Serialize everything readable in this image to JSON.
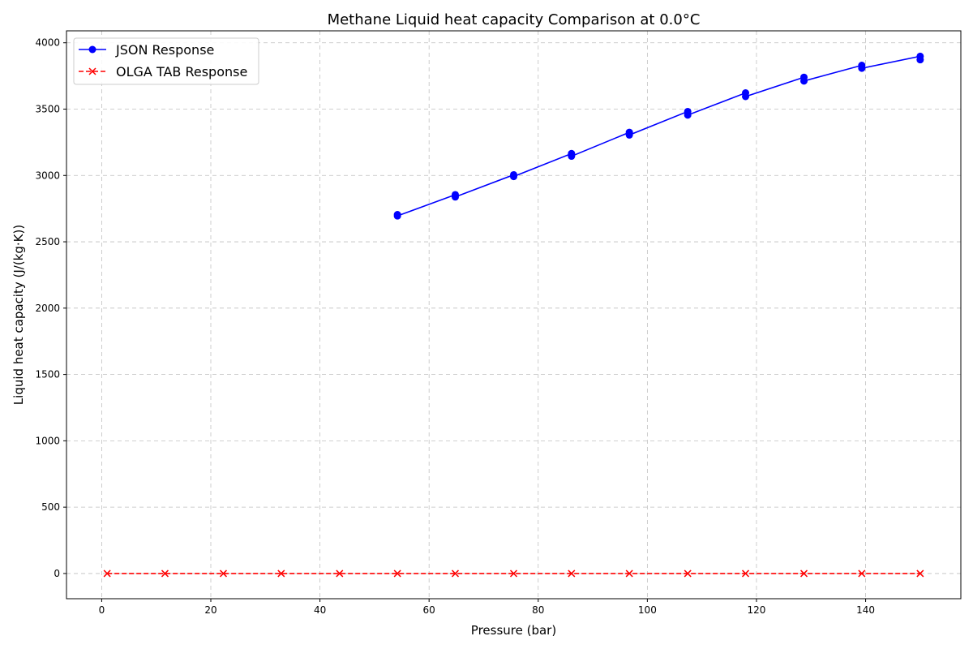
{
  "chart_data": {
    "type": "line",
    "title": "Methane Liquid heat capacity Comparison at 0.0°C",
    "xlabel": "Pressure (bar)",
    "ylabel": "Liquid heat capacity (J/(kg·K))",
    "xlim": [
      -6.45,
      157.45
    ],
    "ylim": [
      -190,
      4090
    ],
    "xticks": [
      0,
      20,
      40,
      60,
      80,
      100,
      120,
      140
    ],
    "yticks": [
      0,
      500,
      1000,
      1500,
      2000,
      2500,
      3000,
      3500,
      4000
    ],
    "grid": true,
    "legend_position": "top-left",
    "series": [
      {
        "name": "JSON Response",
        "color": "#0000ff",
        "marker": "circle",
        "line": "solid",
        "points": [
          [
            54.2,
            2705
          ],
          [
            54.2,
            2695
          ],
          [
            64.8,
            2855
          ],
          [
            64.8,
            2838
          ],
          [
            75.5,
            3005
          ],
          [
            75.5,
            2992
          ],
          [
            86.1,
            3165
          ],
          [
            86.1,
            3145
          ],
          [
            96.7,
            3325
          ],
          [
            96.7,
            3305
          ],
          [
            107.4,
            3482
          ],
          [
            107.4,
            3455
          ],
          [
            118.0,
            3622
          ],
          [
            118.0,
            3595
          ],
          [
            128.7,
            3740
          ],
          [
            128.7,
            3712
          ],
          [
            139.3,
            3830
          ],
          [
            139.3,
            3808
          ],
          [
            150.0,
            3898
          ],
          [
            150.0,
            3872
          ]
        ]
      },
      {
        "name": "OLGA TAB Response",
        "color": "#ff0000",
        "marker": "x",
        "line": "dashed",
        "points": [
          [
            1.0,
            0
          ],
          [
            11.6,
            0
          ],
          [
            22.3,
            0
          ],
          [
            32.9,
            0
          ],
          [
            43.6,
            0
          ],
          [
            54.2,
            0
          ],
          [
            64.8,
            0
          ],
          [
            75.5,
            0
          ],
          [
            86.1,
            0
          ],
          [
            96.7,
            0
          ],
          [
            107.4,
            0
          ],
          [
            118.0,
            0
          ],
          [
            128.7,
            0
          ],
          [
            139.3,
            0
          ],
          [
            150.0,
            0
          ]
        ]
      }
    ]
  }
}
